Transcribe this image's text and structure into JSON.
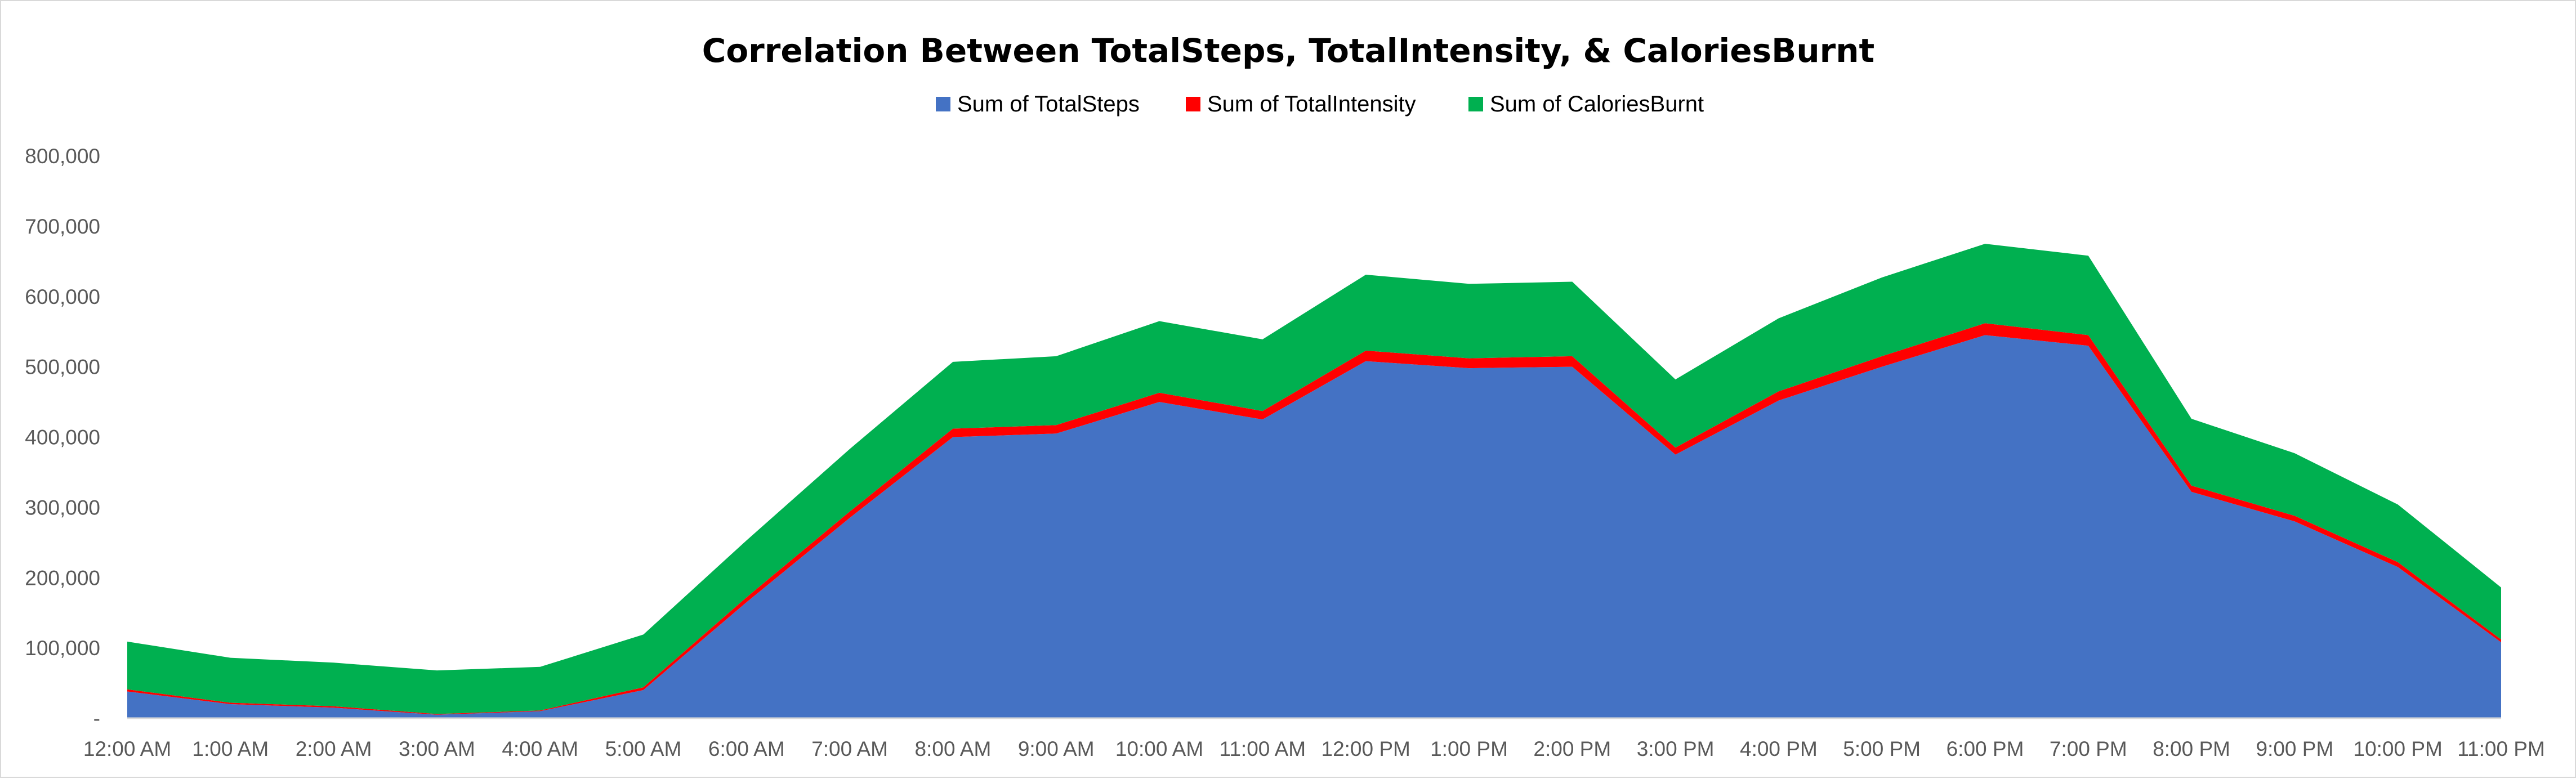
{
  "chart_data": {
    "type": "area",
    "stacked": true,
    "title": "Correlation Between TotalSteps, TotalIntensity, & CaloriesBurnt",
    "categories": [
      "12:00 AM",
      "1:00 AM",
      "2:00 AM",
      "3:00 AM",
      "4:00 AM",
      "5:00 AM",
      "6:00 AM",
      "7:00 AM",
      "8:00 AM",
      "9:00 AM",
      "10:00 AM",
      "11:00 AM",
      "12:00 PM",
      "1:00 PM",
      "2:00 PM",
      "3:00 PM",
      "4:00 PM",
      "5:00 PM",
      "6:00 PM",
      "7:00 PM",
      "8:00 PM",
      "9:00 PM",
      "10:00 PM",
      "11:00 PM"
    ],
    "series": [
      {
        "name": "Sum of TotalSteps",
        "color": "#4472C4",
        "values": [
          38000,
          20000,
          15000,
          5000,
          10000,
          40000,
          165000,
          285000,
          400000,
          405000,
          450000,
          425000,
          508000,
          498000,
          500000,
          375000,
          452000,
          500000,
          545000,
          530000,
          322000,
          280000,
          215000,
          108000
        ]
      },
      {
        "name": "Sum of TotalIntensity",
        "color": "#FF0000",
        "values": [
          3000,
          2000,
          2000,
          1000,
          1000,
          4000,
          7000,
          9000,
          12000,
          12000,
          13000,
          12000,
          15000,
          14000,
          15000,
          10000,
          13000,
          15000,
          17000,
          15000,
          9000,
          8000,
          7000,
          4000
        ]
      },
      {
        "name": "Sum of CaloriesBurnt",
        "color": "#00B050",
        "values": [
          68000,
          64000,
          62000,
          62000,
          62000,
          75000,
          81000,
          89000,
          95000,
          98000,
          102000,
          102000,
          108000,
          106000,
          106000,
          97000,
          104000,
          112000,
          113000,
          113000,
          95000,
          89000,
          82000,
          74000
        ]
      }
    ],
    "y_ticks": [
      "-",
      "100,000",
      "200,000",
      "300,000",
      "400,000",
      "500,000",
      "600,000",
      "700,000",
      "800,000"
    ],
    "ylim": [
      0,
      800000
    ],
    "xlabel": "",
    "ylabel": "",
    "legend_position": "top",
    "grid": false
  }
}
